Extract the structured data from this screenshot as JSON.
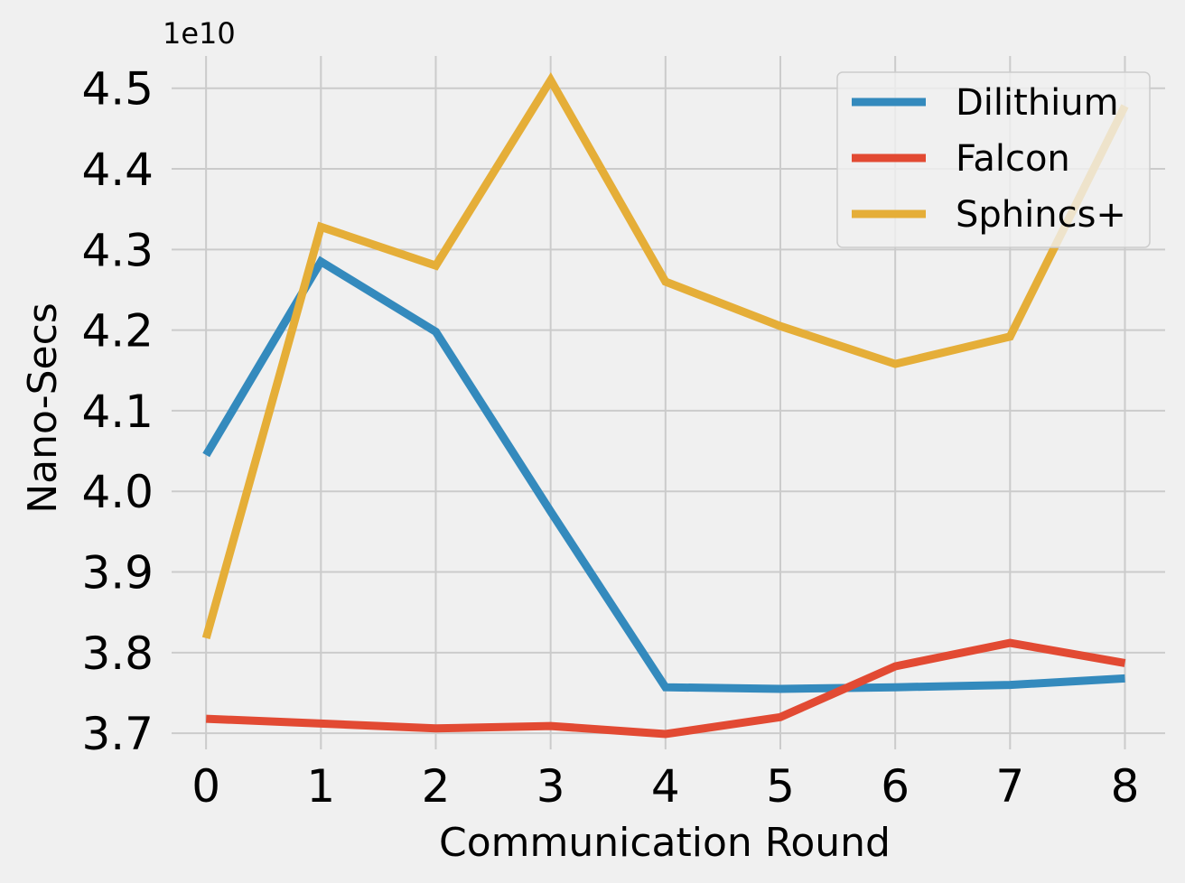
{
  "chart_data": {
    "type": "line",
    "title": "",
    "xlabel": "Communication Round",
    "ylabel": "Nano-Secs",
    "y_offset_label": "1e10",
    "x": [
      0,
      1,
      2,
      3,
      4,
      5,
      6,
      7,
      8
    ],
    "xticks": [
      "0",
      "1",
      "2",
      "3",
      "4",
      "5",
      "6",
      "7",
      "8"
    ],
    "yticks": [
      "3.7",
      "3.8",
      "3.9",
      "4.0",
      "4.1",
      "4.2",
      "4.3",
      "4.4",
      "4.5"
    ],
    "ytick_values": [
      3.7,
      3.8,
      3.9,
      4.0,
      4.1,
      4.2,
      4.3,
      4.4,
      4.5
    ],
    "xlim": [
      -0.3,
      8.35
    ],
    "ylim": [
      3.68,
      4.54
    ],
    "value_scale": "1e10",
    "grid": true,
    "legend_position": "top-right",
    "series": [
      {
        "name": "Dilithium",
        "color": "#348ABD",
        "values": [
          4.045,
          4.285,
          4.198,
          3.975,
          3.757,
          3.755,
          3.757,
          3.76,
          3.768
        ]
      },
      {
        "name": "Falcon",
        "color": "#E24A33",
        "values": [
          3.718,
          3.712,
          3.706,
          3.709,
          3.699,
          3.72,
          3.783,
          3.812,
          3.787
        ]
      },
      {
        "name": "Sphincs+",
        "color": "#E5AE38",
        "values": [
          3.818,
          4.328,
          4.28,
          4.51,
          4.26,
          4.205,
          4.158,
          4.192,
          4.478
        ]
      }
    ]
  }
}
